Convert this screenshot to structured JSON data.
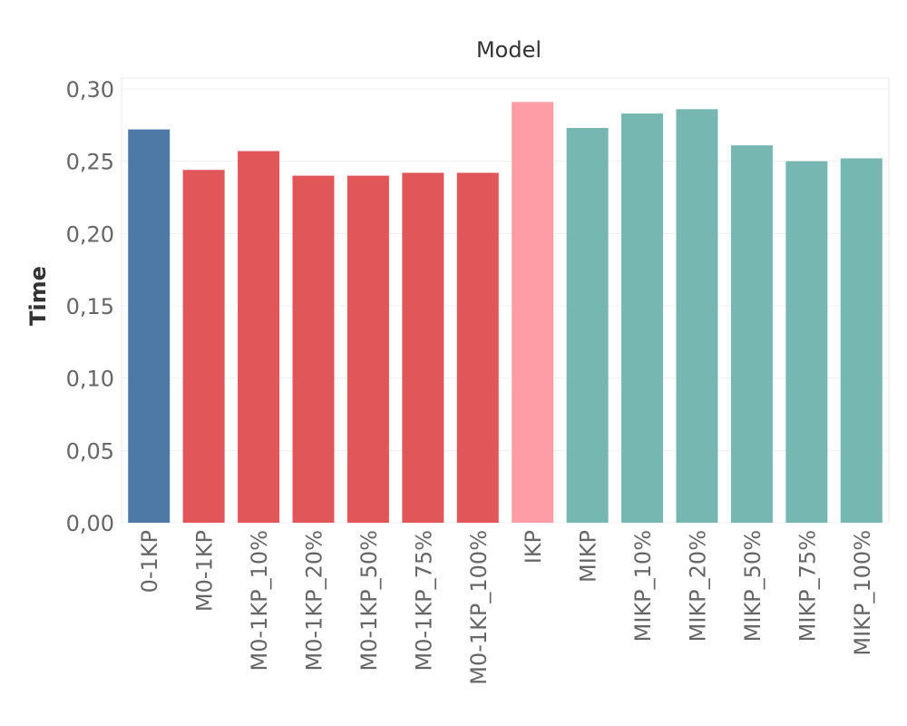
{
  "chart_data": {
    "type": "bar",
    "title": "Model",
    "xlabel": "",
    "ylabel": "Time",
    "ylim": [
      0,
      0.3
    ],
    "yticks": [
      "0,00",
      "0,05",
      "0,10",
      "0,15",
      "0,20",
      "0,25",
      "0,30"
    ],
    "grid": true,
    "categories": [
      "0-1KP",
      "M0-1KP",
      "M0-1KP_10%",
      "M0-1KP_20%",
      "M0-1KP_50%",
      "M0-1KP_75%",
      "M0-1KP_100%",
      "IKP",
      "MIKP",
      "MIKP_10%",
      "MIKP_20%",
      "MIKP_50%",
      "MIKP_75%",
      "MIKP_100%"
    ],
    "values": [
      0.272,
      0.244,
      0.257,
      0.24,
      0.24,
      0.242,
      0.242,
      0.291,
      0.273,
      0.283,
      0.286,
      0.261,
      0.25,
      0.252
    ],
    "colors": [
      "#4e79a7",
      "#e15759",
      "#e15759",
      "#e15759",
      "#e15759",
      "#e15759",
      "#e15759",
      "#ff9da7",
      "#76b7b2",
      "#76b7b2",
      "#76b7b2",
      "#76b7b2",
      "#76b7b2",
      "#76b7b2"
    ]
  }
}
